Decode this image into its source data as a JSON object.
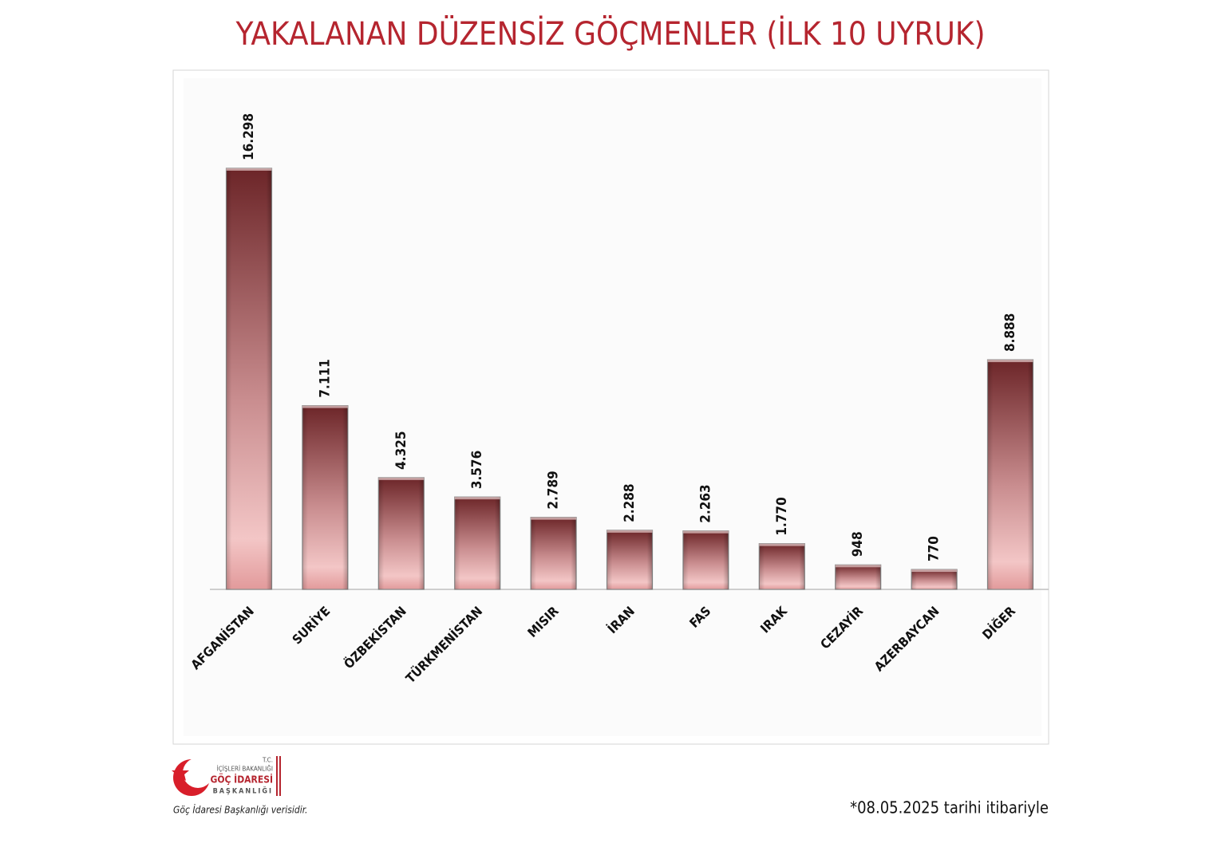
{
  "chart_data": {
    "type": "bar",
    "title": "YAKALANAN DÜZENSİZ GÖÇMENLER (İLK 10 UYRUK)",
    "categories": [
      "AFGANİSTAN",
      "SURİYE",
      "ÖZBEKİSTAN",
      "TÜRKMENİSTAN",
      "MISIR",
      "İRAN",
      "FAS",
      "IRAK",
      "CEZAYİR",
      "AZERBAYCAN",
      "DİĞER"
    ],
    "values": [
      16298,
      7111,
      4325,
      3576,
      2789,
      2288,
      2263,
      1770,
      948,
      770,
      8888
    ],
    "value_labels": [
      "16.298",
      "7.111",
      "4.325",
      "3.576",
      "2.789",
      "2.288",
      "2.263",
      "1.770",
      "948",
      "770",
      "8.888"
    ],
    "color": "#7a2e30",
    "note": "*08.05.2025 tarihi itibariyle"
  },
  "logo": {
    "line1": "T.C.",
    "line2": "İÇİŞLERİ BAKANLIĞI",
    "line3": "GÖÇ İDARESİ",
    "line4": "BAŞKANLIĞI"
  },
  "source": "Göç İdaresi Başkanlığı verisidir."
}
